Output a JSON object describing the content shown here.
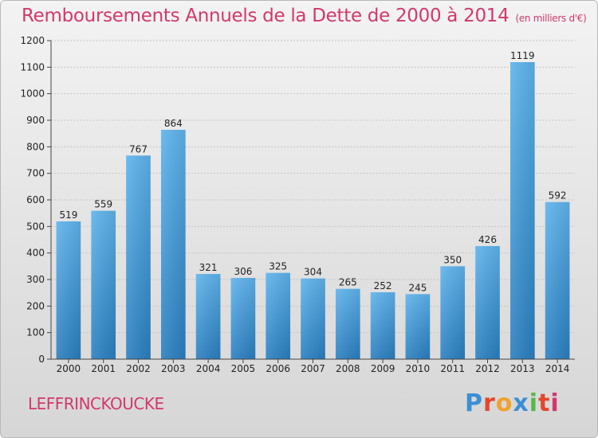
{
  "header": {
    "title": "Remboursements Annuels de la Dette de 2000 à 2014",
    "unit": "(en milliers d'€)"
  },
  "commune": "LEFFRINCKOUCKE",
  "logo": {
    "letters": [
      "P",
      "r",
      "o",
      "x",
      "i",
      "t",
      "i"
    ]
  },
  "colors": {
    "bar_top": "#5eb3ec",
    "bar_bottom": "#2a7fc0",
    "title": "#d2386c"
  },
  "chart_data": {
    "type": "bar",
    "title": "Remboursements Annuels de la Dette de 2000 à 2014",
    "categories": [
      "2000",
      "2001",
      "2002",
      "2003",
      "2004",
      "2005",
      "2006",
      "2007",
      "2008",
      "2009",
      "2010",
      "2011",
      "2012",
      "2013",
      "2014"
    ],
    "values": [
      519,
      559,
      767,
      864,
      321,
      306,
      325,
      304,
      265,
      252,
      245,
      350,
      426,
      1119,
      592
    ],
    "xlabel": "",
    "ylabel": "",
    "ylim": [
      0,
      1200
    ],
    "yticks": [
      0,
      100,
      200,
      300,
      400,
      500,
      600,
      700,
      800,
      900,
      1000,
      1100,
      1200
    ],
    "grid": true
  }
}
